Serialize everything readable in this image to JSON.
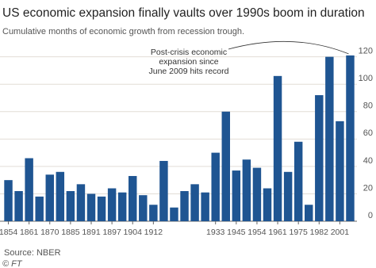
{
  "chart_data": {
    "type": "bar",
    "title": "US economic expansion finally vaults over 1990s boom in duration",
    "subtitle": "Cumulative months of economic growth from recession trough.",
    "categories": [
      "1854",
      null,
      "1861",
      null,
      "1870",
      null,
      "1885",
      null,
      "1891",
      null,
      "1897",
      null,
      "1904",
      null,
      "1912",
      null,
      null,
      null,
      null,
      null,
      "1933",
      null,
      "1945",
      null,
      "1954",
      null,
      "1961",
      null,
      "1975",
      null,
      "1982",
      null,
      "2001",
      null
    ],
    "values": [
      30,
      22,
      46,
      18,
      34,
      36,
      22,
      27,
      20,
      18,
      24,
      21,
      33,
      19,
      12,
      44,
      10,
      22,
      27,
      21,
      50,
      80,
      37,
      45,
      39,
      24,
      106,
      36,
      58,
      12,
      92,
      120,
      73,
      121
    ],
    "color": "#1f5592",
    "ylim": [
      0,
      125
    ],
    "yticks": [
      0,
      20,
      40,
      60,
      80,
      100,
      120
    ],
    "grid": true,
    "annotation": [
      "Post-crisis economic",
      "expansion since",
      "June 2009 hits record"
    ],
    "source": "Source: NBER",
    "credit": "© FT"
  }
}
